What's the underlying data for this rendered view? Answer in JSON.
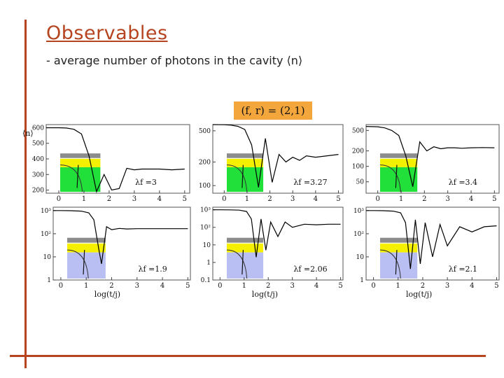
{
  "header": {
    "title": "Observables",
    "subtitle": "- average number of photons in the cavity ⟨n⟩",
    "badge": "(f, r) = (2,1)"
  },
  "colors": {
    "accent": "#b5441f",
    "badge": "#f3a63c",
    "inset_green": "#22e03a",
    "inset_yellow": "#f4f000",
    "inset_gray": "#8c8c8c",
    "inset_blue": "#b9bff2"
  },
  "chart_data": [
    {
      "type": "line",
      "panel": "top-left",
      "ylabel": "⟨n⟩",
      "xlabel": "",
      "x_ticks": [
        "0",
        "1",
        "2",
        "3",
        "4",
        "5"
      ],
      "y_ticks": [
        "200",
        "300",
        "400",
        "500",
        "600"
      ],
      "annotation": "λf =3",
      "xlim": [
        -0.5,
        5.2
      ],
      "ylim": [
        180,
        620
      ],
      "scale": "linear",
      "series": [
        {
          "x": [
            -0.5,
            0.0,
            0.3,
            0.6,
            0.9,
            1.2,
            1.5,
            1.8,
            2.1,
            2.4,
            2.7,
            3.0,
            3.3,
            3.6,
            4.0,
            4.5,
            5.0
          ],
          "y": [
            600,
            600,
            598,
            590,
            560,
            420,
            190,
            300,
            200,
            210,
            340,
            330,
            335,
            335,
            335,
            330,
            335
          ]
        }
      ]
    },
    {
      "type": "line",
      "panel": "top-middle",
      "xlabel": "",
      "x_ticks": [
        "0",
        "1",
        "2",
        "3",
        "4",
        "5"
      ],
      "y_ticks": [
        "100",
        "200",
        "500"
      ],
      "annotation": "λf =3.27",
      "xlim": [
        -0.5,
        5.2
      ],
      "ylim": [
        80,
        600
      ],
      "scale": "log",
      "series": [
        {
          "x": [
            -0.5,
            0.0,
            0.3,
            0.6,
            0.9,
            1.2,
            1.5,
            1.8,
            2.1,
            2.4,
            2.7,
            3.0,
            3.3,
            3.6,
            4.0,
            4.5,
            5.0
          ],
          "y": [
            600,
            598,
            590,
            570,
            520,
            330,
            95,
            400,
            110,
            250,
            200,
            230,
            210,
            240,
            230,
            240,
            250
          ]
        }
      ]
    },
    {
      "type": "line",
      "panel": "top-right",
      "xlabel": "",
      "x_ticks": [
        "0",
        "1",
        "2",
        "3",
        "4",
        "5"
      ],
      "y_ticks": [
        "50",
        "100",
        "200",
        "500"
      ],
      "annotation": "λf =3.4",
      "xlim": [
        -0.5,
        5.2
      ],
      "ylim": [
        30,
        650
      ],
      "scale": "log",
      "series": [
        {
          "x": [
            -0.5,
            0.0,
            0.3,
            0.6,
            0.9,
            1.2,
            1.5,
            1.8,
            2.1,
            2.4,
            2.7,
            3.0,
            3.3,
            3.6,
            4.0,
            4.5,
            5.0
          ],
          "y": [
            600,
            590,
            560,
            500,
            400,
            160,
            40,
            300,
            200,
            240,
            220,
            230,
            230,
            225,
            230,
            232,
            230
          ]
        }
      ]
    },
    {
      "type": "line",
      "panel": "bottom-left",
      "xlabel": "log(t/j)",
      "x_ticks": [
        "0",
        "1",
        "2",
        "3",
        "4",
        "5"
      ],
      "y_ticks": [
        "1",
        "10",
        "10²",
        "10³"
      ],
      "annotation": "λf =1.9",
      "xlim": [
        -0.3,
        5.1
      ],
      "ylim": [
        1,
        1400
      ],
      "scale": "log",
      "series": [
        {
          "x": [
            -0.3,
            0.0,
            0.4,
            0.8,
            1.1,
            1.3,
            1.5,
            1.6,
            1.8,
            2.0,
            2.3,
            2.6,
            3.0,
            3.5,
            4.0,
            4.5,
            5.0
          ],
          "y": [
            1000,
            1000,
            990,
            950,
            800,
            400,
            20,
            5,
            200,
            150,
            170,
            160,
            165,
            165,
            165,
            165,
            165
          ]
        }
      ]
    },
    {
      "type": "line",
      "panel": "bottom-middle",
      "xlabel": "log(t/j)",
      "x_ticks": [
        "0",
        "1",
        "2",
        "3",
        "4",
        "5"
      ],
      "y_ticks": [
        "0.1",
        "1",
        "10",
        "10²",
        "10³"
      ],
      "annotation": "λf =2.06",
      "xlim": [
        -0.3,
        5.1
      ],
      "ylim": [
        0.1,
        1400
      ],
      "scale": "log",
      "series": [
        {
          "x": [
            -0.3,
            0.0,
            0.4,
            0.8,
            1.1,
            1.3,
            1.5,
            1.7,
            1.9,
            2.1,
            2.4,
            2.7,
            3.0,
            3.5,
            4.0,
            4.5,
            5.0
          ],
          "y": [
            1000,
            1000,
            990,
            950,
            800,
            300,
            2,
            300,
            5,
            200,
            30,
            200,
            100,
            150,
            140,
            150,
            150
          ]
        }
      ]
    },
    {
      "type": "line",
      "panel": "bottom-right",
      "xlabel": "log(t/j)",
      "x_ticks": [
        "0",
        "1",
        "2",
        "3",
        "4",
        "5"
      ],
      "y_ticks": [
        "1",
        "10",
        "10²",
        "10³"
      ],
      "annotation": "λf =2.1",
      "xlim": [
        -0.3,
        5.1
      ],
      "ylim": [
        1,
        1400
      ],
      "scale": "log",
      "series": [
        {
          "x": [
            -0.3,
            0.0,
            0.4,
            0.8,
            1.1,
            1.3,
            1.5,
            1.7,
            1.9,
            2.1,
            2.4,
            2.7,
            3.0,
            3.5,
            4.0,
            4.5,
            5.0
          ],
          "y": [
            1000,
            1000,
            990,
            950,
            800,
            300,
            3,
            400,
            5,
            300,
            10,
            250,
            30,
            200,
            120,
            200,
            220
          ]
        }
      ]
    }
  ]
}
